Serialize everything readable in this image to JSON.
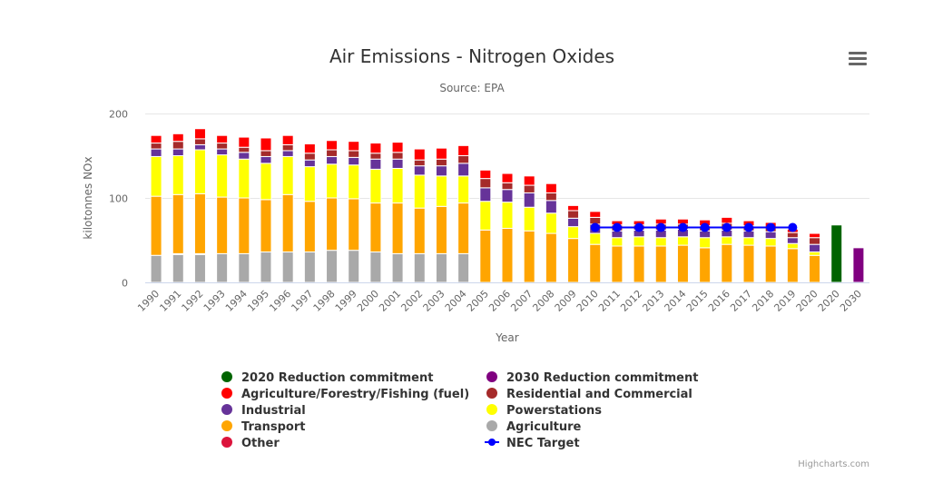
{
  "menu_icon": "hamburger-menu-icon",
  "credit": "Highcharts.com",
  "chart_data": {
    "type": "bar",
    "stacked": true,
    "title": "Air Emissions - Nitrogen Oxides",
    "subtitle": "Source: EPA",
    "xlabel": "Year",
    "ylabel": "kilotonnes NOx",
    "ylim": [
      0,
      200
    ],
    "yticks": [
      0,
      100,
      200
    ],
    "grid": true,
    "legend_position": "bottom-center",
    "categories": [
      "1990",
      "1991",
      "1992",
      "1993",
      "1994",
      "1995",
      "1996",
      "1997",
      "1998",
      "1999",
      "2000",
      "2001",
      "2002",
      "2003",
      "2004",
      "2005",
      "2006",
      "2007",
      "2008",
      "2009",
      "2010",
      "2011",
      "2012",
      "2013",
      "2014",
      "2015",
      "2016",
      "2017",
      "2018",
      "2019",
      "2020",
      "2020",
      "2030"
    ],
    "series": [
      {
        "name": "Agriculture",
        "color": "#A9A9A9",
        "values": [
          32,
          33,
          33,
          34,
          34,
          36,
          36,
          36,
          38,
          38,
          36,
          34,
          34,
          34,
          34,
          0,
          0,
          0,
          0,
          0,
          0,
          0,
          0,
          0,
          0,
          0,
          0,
          0,
          0,
          0,
          0,
          null,
          null
        ]
      },
      {
        "name": "Other",
        "color": "#DC143C",
        "values": [
          0,
          1,
          1,
          0,
          0,
          0,
          0,
          0,
          0,
          0,
          0,
          0,
          0,
          0,
          0,
          0,
          0,
          0,
          0,
          0,
          0,
          0,
          0,
          0,
          0,
          0,
          0,
          0,
          0,
          0,
          0,
          null,
          null
        ]
      },
      {
        "name": "Transport",
        "color": "#FFA500",
        "values": [
          70,
          70,
          71,
          67,
          66,
          62,
          68,
          60,
          62,
          61,
          58,
          60,
          54,
          56,
          60,
          62,
          64,
          61,
          58,
          52,
          45,
          43,
          43,
          43,
          44,
          41,
          45,
          44,
          43,
          40,
          32,
          null,
          null
        ]
      },
      {
        "name": "Powerstations",
        "color": "#FFFF00",
        "values": [
          47,
          46,
          52,
          50,
          46,
          43,
          45,
          41,
          40,
          40,
          40,
          41,
          39,
          36,
          32,
          34,
          31,
          28,
          24,
          14,
          13,
          10,
          11,
          10,
          10,
          12,
          9,
          9,
          9,
          6,
          4,
          null,
          null
        ]
      },
      {
        "name": "Industrial",
        "color": "#663399",
        "values": [
          9,
          8,
          6,
          7,
          8,
          8,
          7,
          8,
          9,
          9,
          12,
          11,
          11,
          12,
          15,
          16,
          15,
          17,
          15,
          10,
          11,
          8,
          8,
          9,
          9,
          8,
          8,
          8,
          8,
          7,
          9,
          null,
          null
        ]
      },
      {
        "name": "Residential and Commercial",
        "color": "#A52A2A",
        "values": [
          7,
          9,
          7,
          7,
          6,
          7,
          7,
          8,
          8,
          8,
          7,
          8,
          7,
          8,
          9,
          11,
          8,
          9,
          9,
          9,
          8,
          7,
          6,
          7,
          6,
          6,
          8,
          6,
          5,
          6,
          8,
          null,
          null
        ]
      },
      {
        "name": "Agriculture/Forestry/Fishing (fuel)",
        "color": "#FF0000",
        "values": [
          9,
          9,
          12,
          9,
          12,
          15,
          11,
          11,
          11,
          11,
          12,
          12,
          13,
          13,
          12,
          10,
          11,
          11,
          11,
          6,
          7,
          5,
          5,
          6,
          6,
          7,
          7,
          6,
          6,
          4,
          5,
          null,
          null
        ]
      },
      {
        "name": "2020 Reduction commitment",
        "color": "#006400",
        "values": [
          null,
          null,
          null,
          null,
          null,
          null,
          null,
          null,
          null,
          null,
          null,
          null,
          null,
          null,
          null,
          null,
          null,
          null,
          null,
          null,
          null,
          null,
          null,
          null,
          null,
          null,
          null,
          null,
          null,
          null,
          null,
          68,
          null
        ]
      },
      {
        "name": "2030 Reduction commitment",
        "color": "#800080",
        "values": [
          null,
          null,
          null,
          null,
          null,
          null,
          null,
          null,
          null,
          null,
          null,
          null,
          null,
          null,
          null,
          null,
          null,
          null,
          null,
          null,
          null,
          null,
          null,
          null,
          null,
          null,
          null,
          null,
          null,
          null,
          null,
          null,
          41
        ]
      }
    ],
    "line_series": {
      "name": "NEC Target",
      "color": "#0000FF",
      "type": "line",
      "values": [
        null,
        null,
        null,
        null,
        null,
        null,
        null,
        null,
        null,
        null,
        null,
        null,
        null,
        null,
        null,
        null,
        null,
        null,
        null,
        null,
        65,
        65,
        65,
        65,
        65,
        65,
        65,
        65,
        65,
        65,
        null,
        null,
        null
      ]
    },
    "legend": [
      {
        "name": "2020 Reduction commitment",
        "color": "#006400",
        "symbol": "circle"
      },
      {
        "name": "2030 Reduction commitment",
        "color": "#800080",
        "symbol": "circle"
      },
      {
        "name": "Agriculture/Forestry/Fishing (fuel)",
        "color": "#FF0000",
        "symbol": "circle"
      },
      {
        "name": "Residential and Commercial",
        "color": "#A52A2A",
        "symbol": "circle"
      },
      {
        "name": "Industrial",
        "color": "#663399",
        "symbol": "circle"
      },
      {
        "name": "Powerstations",
        "color": "#FFFF00",
        "symbol": "circle"
      },
      {
        "name": "Transport",
        "color": "#FFA500",
        "symbol": "circle"
      },
      {
        "name": "Agriculture",
        "color": "#A9A9A9",
        "symbol": "circle"
      },
      {
        "name": "Other",
        "color": "#DC143C",
        "symbol": "circle"
      },
      {
        "name": "NEC Target",
        "color": "#0000FF",
        "symbol": "line-marker"
      }
    ]
  }
}
